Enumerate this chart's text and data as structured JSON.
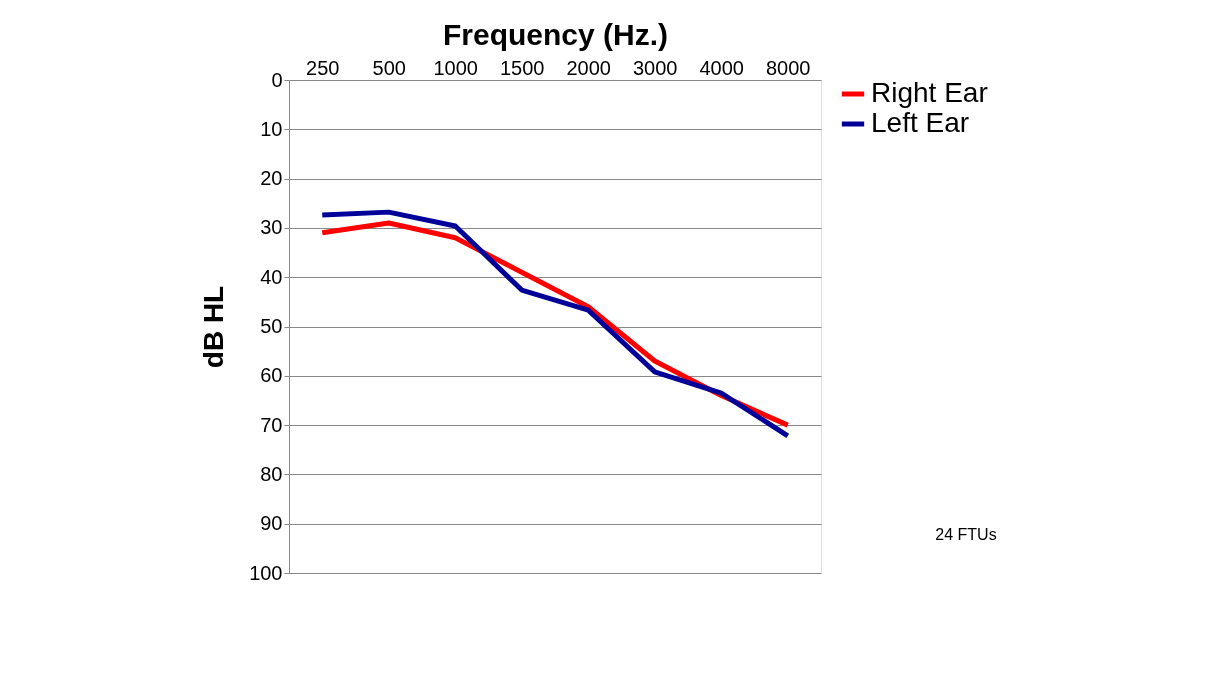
{
  "chart_data": {
    "type": "line",
    "xlabel": "Frequency (Hz.)",
    "ylabel": "dB HL",
    "categories": [
      "250",
      "500",
      "1000",
      "1500",
      "2000",
      "3000",
      "4000",
      "8000"
    ],
    "series": [
      {
        "name": "Right Ear",
        "color": "#ff0000",
        "values": [
          31,
          29,
          32,
          39,
          46,
          57,
          64,
          70
        ]
      },
      {
        "name": "Left Ear",
        "color": "#000099",
        "values": [
          27.4,
          26.8,
          29.6,
          42.6,
          46.7,
          59.2,
          63.5,
          72.2
        ]
      }
    ],
    "ylim": [
      100,
      0
    ],
    "yticks": [
      0,
      10,
      20,
      30,
      40,
      50,
      60,
      70,
      80,
      90,
      100
    ],
    "grid": "y",
    "legend": "right",
    "marker": "none",
    "line_style": "solid",
    "annotations": [
      "24 FTUs"
    ]
  }
}
